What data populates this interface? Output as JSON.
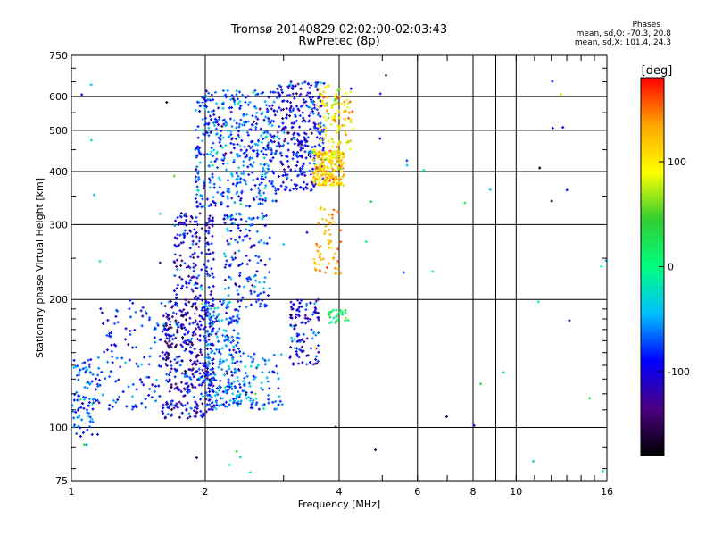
{
  "header": {
    "title_line1": "Tromsø 20140829 02:02:00-02:03:43",
    "title_line2": "RwPretec (8p)"
  },
  "stats": {
    "heading": "Phases",
    "o_line": "mean, sd,O: -70.3, 20.8",
    "x_line": "mean, sd,X: 101.4, 24.3"
  },
  "colorbar": {
    "unit_label": "[deg]",
    "range": [
      -180,
      180
    ],
    "tick_values": [
      100,
      0,
      -100
    ],
    "tick_labels": [
      "100",
      "0",
      "-100"
    ],
    "colors": [
      "#000000",
      "#4b0082",
      "#0000ff",
      "#00bfff",
      "#00ff7f",
      "#32cd32",
      "#ffff00",
      "#ffa500",
      "#ff0000"
    ]
  },
  "chart_data": {
    "type": "scatter",
    "xlabel": "Frequency [MHz]",
    "ylabel": "Stationary phase Virtual Height [km]",
    "xscale": "log",
    "yscale": "log",
    "xlim": [
      1,
      16
    ],
    "ylim": [
      75,
      750
    ],
    "x_ticks": [
      1,
      2,
      4,
      6,
      8,
      10,
      16
    ],
    "x_tick_labels": [
      "1",
      "2",
      "4",
      "6",
      "8",
      "10",
      "16"
    ],
    "x_grid": [
      2,
      4,
      6,
      8,
      9,
      10
    ],
    "y_ticks": [
      75,
      100,
      200,
      300,
      400,
      500,
      600,
      750
    ],
    "y_tick_labels": [
      "75",
      "100",
      "200",
      "300",
      "400",
      "500",
      "600",
      "750"
    ],
    "y_grid": [
      100,
      200,
      300,
      400,
      500,
      600
    ],
    "color_variable": "phase [deg]",
    "clusters": [
      {
        "name": "o-low-F1",
        "f": [
          1.0,
          1.15
        ],
        "h": [
          95,
          145
        ],
        "phase": [
          -75,
          20
        ],
        "n": 90
      },
      {
        "name": "o-lower",
        "f": [
          1.15,
          1.6
        ],
        "h": [
          110,
          200
        ],
        "phase": [
          -80,
          20
        ],
        "n": 120
      },
      {
        "name": "o-band-1.7-2.1",
        "f": [
          1.6,
          2.1
        ],
        "h": [
          105,
          200
        ],
        "phase": [
          -110,
          30
        ],
        "n": 420
      },
      {
        "name": "o-band-1.7-2.1-upper",
        "f": [
          1.7,
          2.1
        ],
        "h": [
          200,
          320
        ],
        "phase": [
          -100,
          25
        ],
        "n": 160
      },
      {
        "name": "o-band-2.0-2.4",
        "f": [
          2.0,
          2.4
        ],
        "h": [
          110,
          200
        ],
        "phase": [
          -70,
          25
        ],
        "n": 220
      },
      {
        "name": "o-F-2.0-2.9",
        "f": [
          1.9,
          2.9
        ],
        "h": [
          330,
          620
        ],
        "phase": [
          -75,
          25
        ],
        "n": 480
      },
      {
        "name": "o-F-2.3-2.8-mid",
        "f": [
          2.2,
          2.8
        ],
        "h": [
          190,
          320
        ],
        "phase": [
          -80,
          25
        ],
        "n": 140
      },
      {
        "name": "o-2.4-3.0-low",
        "f": [
          2.3,
          3.0
        ],
        "h": [
          110,
          150
        ],
        "phase": [
          -60,
          25
        ],
        "n": 100
      },
      {
        "name": "o-F-3.0-3.7",
        "f": [
          2.9,
          3.7
        ],
        "h": [
          360,
          650
        ],
        "phase": [
          -95,
          25
        ],
        "n": 320
      },
      {
        "name": "o-E-3.1-3.6",
        "f": [
          3.1,
          3.6
        ],
        "h": [
          140,
          200
        ],
        "phase": [
          -100,
          25
        ],
        "n": 110
      },
      {
        "name": "x-F-3.5-4.1",
        "f": [
          3.5,
          4.1
        ],
        "h": [
          370,
          450
        ],
        "phase": [
          110,
          25
        ],
        "n": 220
      },
      {
        "name": "x-F-3.6-4.3-upper",
        "f": [
          3.6,
          4.3
        ],
        "h": [
          450,
          640
        ],
        "phase": [
          105,
          25
        ],
        "n": 110
      },
      {
        "name": "x-trace-3.5-4.1",
        "f": [
          3.5,
          4.1
        ],
        "h": [
          230,
          330
        ],
        "phase": [
          130,
          20
        ],
        "n": 60
      },
      {
        "name": "x-E-3.8-4.2",
        "f": [
          3.8,
          4.2
        ],
        "h": [
          175,
          190
        ],
        "phase": [
          20,
          20
        ],
        "n": 25
      },
      {
        "name": "sparse",
        "f": [
          1.0,
          16.0
        ],
        "h": [
          78,
          700
        ],
        "phase": [
          -40,
          80
        ],
        "n": 70
      }
    ]
  }
}
